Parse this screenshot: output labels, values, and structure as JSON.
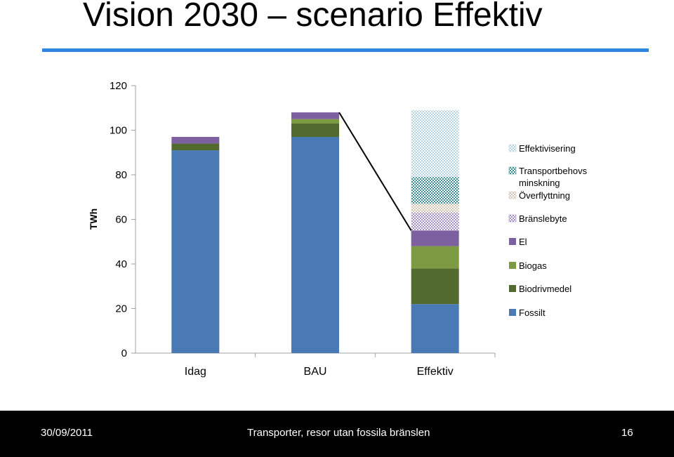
{
  "slide": {
    "title": "Vision 2030 – scenario Effektiv"
  },
  "footer": {
    "date": "30/09/2011",
    "text": "Transporter, resor utan fossila bränslen",
    "page": "16"
  },
  "chart_data": {
    "type": "bar",
    "stacked": true,
    "title": "",
    "xlabel": "",
    "ylabel": "TWh",
    "ylim": [
      0,
      120
    ],
    "yticks": [
      0,
      20,
      40,
      60,
      80,
      100,
      120
    ],
    "categories": [
      "Idag",
      "BAU",
      "Effektiv"
    ],
    "grid": false,
    "legend": "right",
    "connector_line": "from top of BAU to top of El segment in Effektiv",
    "series": [
      {
        "name": "Fossilt",
        "color": "#4a7ab5",
        "pattern": "solid",
        "values": [
          91,
          97,
          22
        ]
      },
      {
        "name": "Biodrivmedel",
        "color": "#536a2e",
        "pattern": "solid",
        "values": [
          3,
          6,
          16
        ]
      },
      {
        "name": "Biogas",
        "color": "#7c9a42",
        "pattern": "solid",
        "values": [
          0,
          2,
          10
        ]
      },
      {
        "name": "El",
        "color": "#7c60a0",
        "pattern": "solid",
        "values": [
          3,
          3,
          7
        ]
      },
      {
        "name": "Bränslebyte",
        "color": "#a58cc2",
        "pattern": "checker",
        "values": [
          0,
          0,
          8
        ]
      },
      {
        "name": "Överflyttning",
        "color": "#d4c4b4",
        "pattern": "checker",
        "values": [
          0,
          0,
          4
        ]
      },
      {
        "name": "Transportbehovs minskning",
        "color": "#3e8f93",
        "pattern": "checker",
        "values": [
          0,
          0,
          12
        ]
      },
      {
        "name": "Effektivisering",
        "color": "#b7d4e2",
        "pattern": "checker",
        "values": [
          0,
          0,
          30
        ]
      }
    ]
  }
}
